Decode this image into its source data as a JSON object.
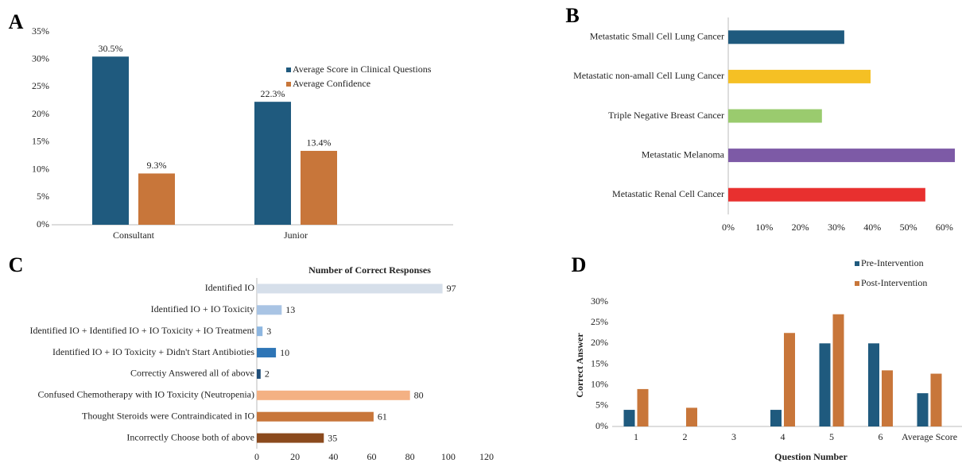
{
  "chart_data": [
    {
      "type": "bar",
      "panel_label": "A",
      "orientation": "vertical",
      "categories": [
        "Consultant",
        "Junior"
      ],
      "series": [
        {
          "name": "Average Score in Clinical Questions",
          "color": "#1f5a7e",
          "values": [
            30.5,
            22.3
          ],
          "value_labels": [
            "30.5%",
            "22.3%"
          ]
        },
        {
          "name": "Average Confidence",
          "color": "#c8763a",
          "values": [
            9.3,
            13.4
          ],
          "value_labels": [
            "9.3%",
            "13.4%"
          ]
        }
      ],
      "ylim": [
        0,
        35
      ],
      "yticks": [
        {
          "value": 0,
          "label": "0%"
        },
        {
          "value": 5,
          "label": "5%"
        },
        {
          "value": 10,
          "label": "10%"
        },
        {
          "value": 15,
          "label": "15%"
        },
        {
          "value": 20,
          "label": "20%"
        },
        {
          "value": 25,
          "label": "25%"
        },
        {
          "value": 30,
          "label": "30%"
        },
        {
          "value": 35,
          "label": "35%"
        }
      ],
      "grid": false,
      "legend": "upper right"
    },
    {
      "type": "bar",
      "panel_label": "B",
      "orientation": "horizontal",
      "categories": [
        "Metastatic Small Cell Lung Cancer",
        "Metastatic non-amall Cell Lung Cancer",
        "Triple Negative Breast Cancer",
        "Metastatic Melanoma",
        "Metastatic Renal Cell Cancer"
      ],
      "values": [
        32.2,
        39.5,
        26,
        62.9,
        54.7
      ],
      "colors": [
        "#1f5a7e",
        "#f5c024",
        "#9acb6e",
        "#7d5aa6",
        "#e8302f"
      ],
      "xlim": [
        0,
        64
      ],
      "xticks": [
        {
          "value": 0,
          "label": "0%"
        },
        {
          "value": 10,
          "label": "10%"
        },
        {
          "value": 20,
          "label": "20%"
        },
        {
          "value": 30,
          "label": "30%"
        },
        {
          "value": 40,
          "label": "40%"
        },
        {
          "value": 50,
          "label": "50%"
        },
        {
          "value": 60,
          "label": "60%"
        }
      ],
      "grid": false
    },
    {
      "type": "bar",
      "panel_label": "C",
      "orientation": "horizontal",
      "title": "Number of Correct Responses",
      "categories": [
        "Identified IO",
        "Identified IO + IO Toxicity",
        "Identified IO + Identified IO + IO Toxicity + IO Treatment",
        "Identified IO + IO Toxicity + Didn't Start Antibioties",
        "Correctiy Answered all of above",
        "Confused Chemotherapy with IO Toxicity (Neutropenia)",
        "Thought Steroids were Contraindicated in IO",
        "Incorrectly Choose both of above"
      ],
      "values": [
        97,
        13,
        3,
        10,
        2,
        80,
        61,
        35
      ],
      "colors": [
        "#d6dfea",
        "#a9c4e4",
        "#8db6e0",
        "#2e75b6",
        "#1f4e79",
        "#f4b183",
        "#c8763a",
        "#8b4a1d"
      ],
      "xlim": [
        0,
        120
      ],
      "xticks": [
        0,
        20,
        40,
        60,
        80,
        100,
        120
      ],
      "grid": false,
      "data_labels": true
    },
    {
      "type": "bar",
      "panel_label": "D",
      "orientation": "vertical",
      "x_label": "Question Number",
      "y_label": "Correct Answer",
      "categories": [
        "1",
        "2",
        "3",
        "4",
        "5",
        "6",
        "Average Score"
      ],
      "series": [
        {
          "name": "Pre-Intervention",
          "color": "#1f5a7e",
          "values": [
            4,
            0,
            0,
            4,
            20,
            20,
            8
          ]
        },
        {
          "name": "Post-Intervention",
          "color": "#c8763a",
          "values": [
            9,
            4.5,
            0,
            22.5,
            27,
            13.5,
            12.7
          ]
        }
      ],
      "ylim": [
        0,
        30
      ],
      "yticks": [
        {
          "value": 0,
          "label": "0%"
        },
        {
          "value": 5,
          "label": "5%"
        },
        {
          "value": 10,
          "label": "10%"
        },
        {
          "value": 15,
          "label": "15%"
        },
        {
          "value": 20,
          "label": "20%"
        },
        {
          "value": 25,
          "label": "25%"
        },
        {
          "value": 30,
          "label": "30%"
        }
      ],
      "grid": false,
      "legend": "upper right"
    }
  ]
}
